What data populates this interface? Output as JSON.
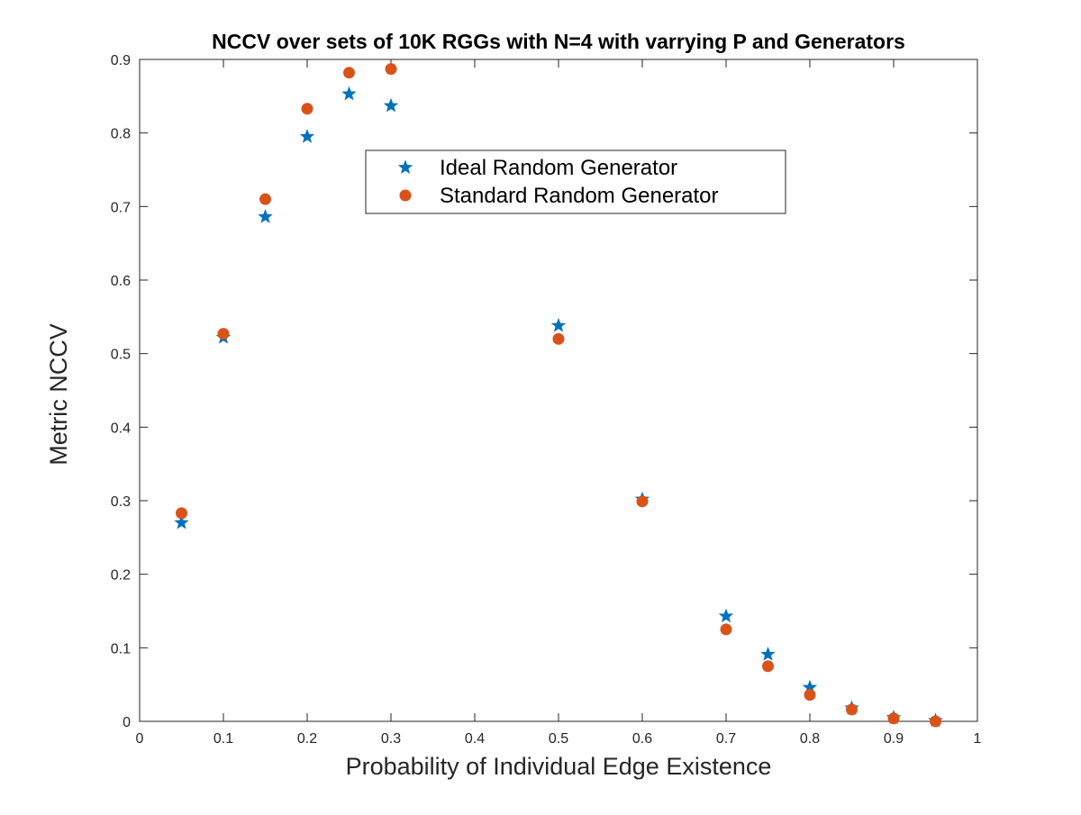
{
  "chart_data": {
    "type": "scatter",
    "title": "NCCV over sets of 10K RGGs with N=4 with varrying P and Generators",
    "xlabel": "Probability of Individual Edge Existence",
    "ylabel": "Metric NCCV",
    "xlim": [
      0,
      1
    ],
    "ylim": [
      0,
      0.9
    ],
    "xticks": [
      "0",
      "0.1",
      "0.2",
      "0.3",
      "0.4",
      "0.5",
      "0.6",
      "0.7",
      "0.8",
      "0.9",
      "1"
    ],
    "yticks": [
      "0",
      "0.1",
      "0.2",
      "0.3",
      "0.4",
      "0.5",
      "0.6",
      "0.7",
      "0.8",
      "0.9"
    ],
    "grid": false,
    "legend_position": "top-center",
    "series": [
      {
        "name": "Ideal Random Generator",
        "marker": "star",
        "color": "#0072BD",
        "points": [
          {
            "x": 0.05,
            "y": 0.27
          },
          {
            "x": 0.1,
            "y": 0.522
          },
          {
            "x": 0.15,
            "y": 0.686
          },
          {
            "x": 0.2,
            "y": 0.795
          },
          {
            "x": 0.25,
            "y": 0.853
          },
          {
            "x": 0.3,
            "y": 0.837
          },
          {
            "x": 0.5,
            "y": 0.538
          },
          {
            "x": 0.6,
            "y": 0.302
          },
          {
            "x": 0.7,
            "y": 0.143
          },
          {
            "x": 0.75,
            "y": 0.091
          },
          {
            "x": 0.8,
            "y": 0.046
          },
          {
            "x": 0.85,
            "y": 0.018
          },
          {
            "x": 0.9,
            "y": 0.005
          },
          {
            "x": 0.95,
            "y": 0.001
          }
        ]
      },
      {
        "name": "Standard Random Generator",
        "marker": "circle",
        "color": "#D95319",
        "points": [
          {
            "x": 0.05,
            "y": 0.283
          },
          {
            "x": 0.1,
            "y": 0.527
          },
          {
            "x": 0.15,
            "y": 0.71
          },
          {
            "x": 0.2,
            "y": 0.833
          },
          {
            "x": 0.25,
            "y": 0.882
          },
          {
            "x": 0.3,
            "y": 0.887
          },
          {
            "x": 0.5,
            "y": 0.52
          },
          {
            "x": 0.6,
            "y": 0.299
          },
          {
            "x": 0.7,
            "y": 0.125
          },
          {
            "x": 0.75,
            "y": 0.075
          },
          {
            "x": 0.8,
            "y": 0.036
          },
          {
            "x": 0.85,
            "y": 0.016
          },
          {
            "x": 0.9,
            "y": 0.004
          },
          {
            "x": 0.95,
            "y": 0.0
          }
        ]
      }
    ]
  }
}
